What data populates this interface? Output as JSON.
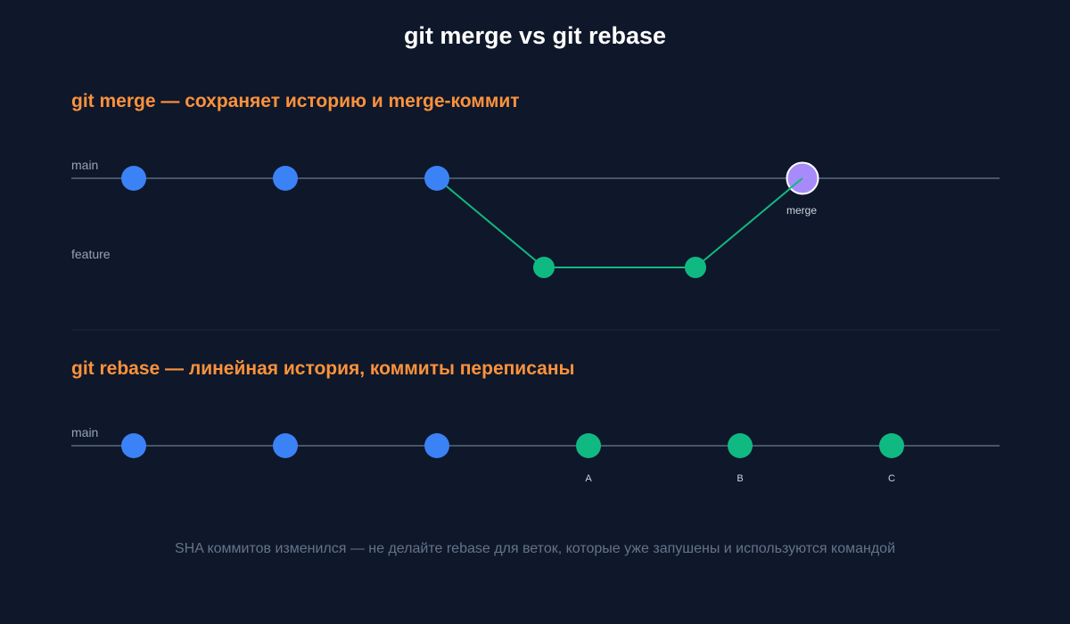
{
  "title": "git merge vs git rebase",
  "colors": {
    "background": "#0f172a",
    "title": "#ffffff",
    "section_title": "#fb923c",
    "branch_label": "#94a3b8",
    "axis_line": "#475569",
    "divider": "#1e293b",
    "main_commit": "#3b82f6",
    "feature_commit": "#10b981",
    "merge_commit": "#a78bfa",
    "merge_commit_stroke": "#ffffff",
    "footnote": "#64748b"
  },
  "merge_section": {
    "title": "git merge — сохраняет историю и merge-коммит",
    "main_branch_label": "main",
    "feature_branch_label": "feature",
    "main_commit_count": 3,
    "feature_commit_count": 2,
    "merge_commit_label": "merge"
  },
  "rebase_section": {
    "title": "git rebase — линейная история, коммиты переписаны",
    "main_branch_label": "main",
    "main_commit_count": 3,
    "rebased_commit_labels": [
      "A",
      "B",
      "C"
    ]
  },
  "footnote": "SHA коммитов изменился — не делайте rebase для веток, которые уже запушены и используются командой"
}
